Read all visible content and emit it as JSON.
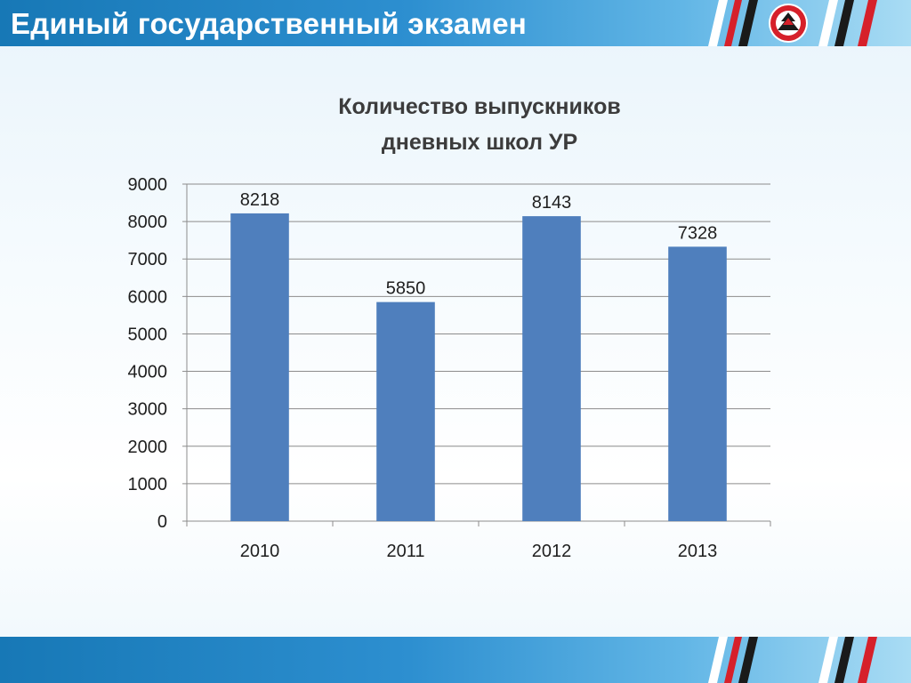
{
  "header": {
    "title": "Единый государственный экзамен"
  },
  "colors": {
    "bar": "#4f7fbd",
    "header_accent": "#1f7fc2",
    "stripe_red": "#d6202a",
    "stripe_dark": "#1a1a1a",
    "stripe_white": "#ffffff"
  },
  "logo": {
    "icon": "udmurtia-emblem-icon"
  },
  "chart_data": {
    "type": "bar",
    "title_line1": "Количество выпускников",
    "title_line2": "дневных школ УР",
    "categories": [
      "2010",
      "2011",
      "2012",
      "2013"
    ],
    "values": [
      8218,
      5850,
      8143,
      7328
    ],
    "data_labels": [
      "8218",
      "5850",
      "8143",
      "7328"
    ],
    "ylim": [
      0,
      9000
    ],
    "yticks": [
      0,
      1000,
      2000,
      3000,
      4000,
      5000,
      6000,
      7000,
      8000,
      9000
    ],
    "grid": true,
    "legend": "none",
    "xlabel": "",
    "ylabel": ""
  }
}
